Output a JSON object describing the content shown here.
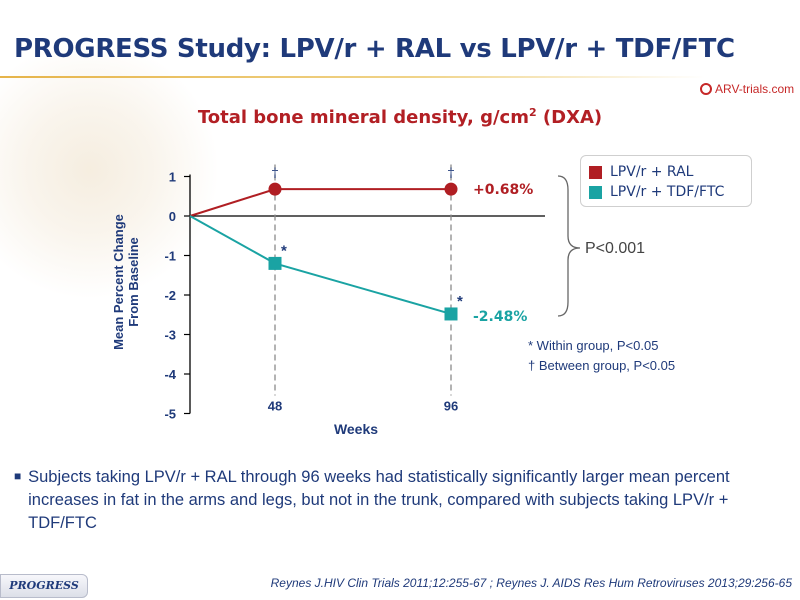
{
  "title": "PROGRESS Study: LPV/r + RAL vs LPV/r + TDF/FTC",
  "logo_text": "ARV-trials.com",
  "subtitle_main": "Total bone mineral density, g/cm",
  "subtitle_sup": "2",
  "subtitle_tail": " (DXA)",
  "colors": {
    "ral": "#b01e23",
    "tdf": "#1aa3a3",
    "text": "#1f3a7a"
  },
  "chart_data": {
    "type": "line",
    "title": "Total bone mineral density, g/cm2 (DXA)",
    "xlabel": "Weeks",
    "ylabel_lines": [
      "Mean Percent Change",
      "From Baseline"
    ],
    "x": [
      0,
      48,
      96
    ],
    "x_ticks": [
      48,
      96
    ],
    "y_ticks": [
      1,
      0,
      -1,
      -2,
      -3,
      -4,
      -5
    ],
    "ylim": [
      -5,
      1
    ],
    "series": [
      {
        "name": "LPV/r + RAL",
        "color": "#b01e23",
        "marker": "circle",
        "values": [
          0,
          0.68,
          0.68
        ],
        "end_label": "+0.68%"
      },
      {
        "name": "LPV/r + TDF/FTC",
        "color": "#1aa3a3",
        "marker": "square",
        "values": [
          0,
          -1.2,
          -2.48
        ],
        "end_label": "-2.48%"
      }
    ],
    "dagger_marks": [
      "†",
      "†"
    ],
    "star_marks": [
      "*",
      "*"
    ]
  },
  "pvalue_text": "P<0.001",
  "footnotes": [
    "* Within group, P<0.05",
    "† Between group, P<0.05"
  ],
  "bullet": "Subjects taking LPV/r + RAL through 96 weeks had statistically significantly larger mean percent increases in fat in the arms and legs, but not in the trunk, compared with subjects taking LPV/r + TDF/FTC",
  "study_badge": "PROGRESS",
  "reference": "Reynes J.HIV Clin Trials 2011;12:255-67 ; Reynes J. AIDS Res Hum Retroviruses 2013;29:256-65"
}
